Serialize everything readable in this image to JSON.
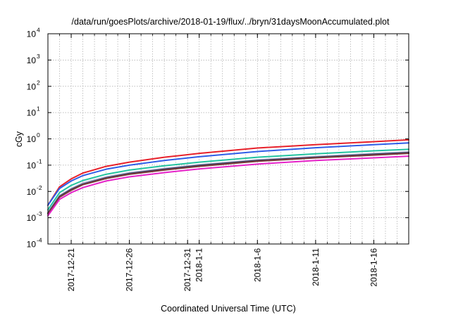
{
  "chart_data": {
    "type": "line",
    "title": "/data/run/goesPlots/archive/2018-01-19/flux/../bryn/31daysMoonAccumulated.plot",
    "xlabel": "Coordinated Universal Time (UTC)",
    "ylabel": "cGy",
    "y_scale": "log",
    "ylim": [
      0.0001,
      10000
    ],
    "y_ticks": [
      {
        "base": "10",
        "exp": "-4",
        "value": 0.0001
      },
      {
        "base": "10",
        "exp": "-3",
        "value": 0.001
      },
      {
        "base": "10",
        "exp": "-2",
        "value": 0.01
      },
      {
        "base": "10",
        "exp": "-1",
        "value": 0.1
      },
      {
        "base": "10",
        "exp": "0",
        "value": 1
      },
      {
        "base": "10",
        "exp": "1",
        "value": 10
      },
      {
        "base": "10",
        "exp": "2",
        "value": 100
      },
      {
        "base": "10",
        "exp": "3",
        "value": 1000
      },
      {
        "base": "10",
        "exp": "4",
        "value": 10000
      }
    ],
    "xlim": [
      "2017-12-19",
      "2018-01-19"
    ],
    "x_ticks": [
      {
        "date": "2017-12-21",
        "label": "2017-12-21"
      },
      {
        "date": "2017-12-26",
        "label": "2017-12-26"
      },
      {
        "date": "2017-12-31",
        "label": "2017-12-31"
      },
      {
        "date": "2018-01-01",
        "label": "2018-1-1"
      },
      {
        "date": "2018-01-06",
        "label": "2018-1-6"
      },
      {
        "date": "2018-01-11",
        "label": "2018-1-11"
      },
      {
        "date": "2018-01-16",
        "label": "2018-1-16"
      }
    ],
    "grid": true,
    "series": [
      {
        "color": "#e8212a",
        "x": [
          "2017-12-19",
          "2017-12-20",
          "2017-12-21",
          "2017-12-22",
          "2017-12-24",
          "2017-12-26",
          "2017-12-29",
          "2018-01-01",
          "2018-01-06",
          "2018-01-11",
          "2018-01-16",
          "2018-01-19"
        ],
        "y": [
          0.003,
          0.015,
          0.03,
          0.05,
          0.09,
          0.13,
          0.2,
          0.28,
          0.45,
          0.6,
          0.78,
          0.92
        ]
      },
      {
        "color": "#2f5ee8",
        "x": [
          "2017-12-19",
          "2017-12-20",
          "2017-12-21",
          "2017-12-22",
          "2017-12-24",
          "2017-12-26",
          "2017-12-29",
          "2018-01-01",
          "2018-01-06",
          "2018-01-11",
          "2018-01-16",
          "2018-01-19"
        ],
        "y": [
          0.003,
          0.013,
          0.025,
          0.04,
          0.07,
          0.1,
          0.15,
          0.21,
          0.33,
          0.46,
          0.6,
          0.7
        ]
      },
      {
        "color": "#22c3a0",
        "x": [
          "2017-12-19",
          "2017-12-20",
          "2017-12-21",
          "2017-12-22",
          "2017-12-24",
          "2017-12-26",
          "2017-12-29",
          "2018-01-01",
          "2018-01-06",
          "2018-01-11",
          "2018-01-16",
          "2018-01-19"
        ],
        "y": [
          0.002,
          0.009,
          0.017,
          0.026,
          0.045,
          0.065,
          0.095,
          0.13,
          0.2,
          0.27,
          0.35,
          0.4
        ]
      },
      {
        "color": "#b8b8d8",
        "x": [
          "2017-12-19",
          "2017-12-20",
          "2017-12-21",
          "2017-12-22",
          "2017-12-24",
          "2017-12-26",
          "2017-12-29",
          "2018-01-01",
          "2018-01-06",
          "2018-01-11",
          "2018-01-16",
          "2018-01-19"
        ],
        "y": [
          0.0016,
          0.007,
          0.013,
          0.021,
          0.036,
          0.052,
          0.075,
          0.105,
          0.16,
          0.215,
          0.28,
          0.32
        ]
      },
      {
        "color": "#3a3a5a",
        "x": [
          "2017-12-19",
          "2017-12-20",
          "2017-12-21",
          "2017-12-22",
          "2017-12-24",
          "2017-12-26",
          "2017-12-29",
          "2018-01-01",
          "2018-01-06",
          "2018-01-11",
          "2018-01-16",
          "2018-01-19"
        ],
        "y": [
          0.0015,
          0.0065,
          0.012,
          0.019,
          0.033,
          0.048,
          0.07,
          0.098,
          0.15,
          0.2,
          0.26,
          0.3
        ]
      },
      {
        "color": "#7a3c3c",
        "x": [
          "2017-12-19",
          "2017-12-20",
          "2017-12-21",
          "2017-12-22",
          "2017-12-24",
          "2017-12-26",
          "2017-12-29",
          "2018-01-01",
          "2018-01-06",
          "2018-01-11",
          "2018-01-16",
          "2018-01-19"
        ],
        "y": [
          0.0014,
          0.006,
          0.011,
          0.018,
          0.031,
          0.045,
          0.065,
          0.09,
          0.14,
          0.19,
          0.24,
          0.28
        ]
      },
      {
        "color": "#e622c8",
        "x": [
          "2017-12-19",
          "2017-12-20",
          "2017-12-21",
          "2017-12-22",
          "2017-12-24",
          "2017-12-26",
          "2017-12-29",
          "2018-01-01",
          "2018-01-06",
          "2018-01-11",
          "2018-01-16",
          "2018-01-19"
        ],
        "y": [
          0.0012,
          0.005,
          0.009,
          0.014,
          0.025,
          0.036,
          0.052,
          0.072,
          0.11,
          0.15,
          0.19,
          0.22
        ]
      }
    ]
  }
}
